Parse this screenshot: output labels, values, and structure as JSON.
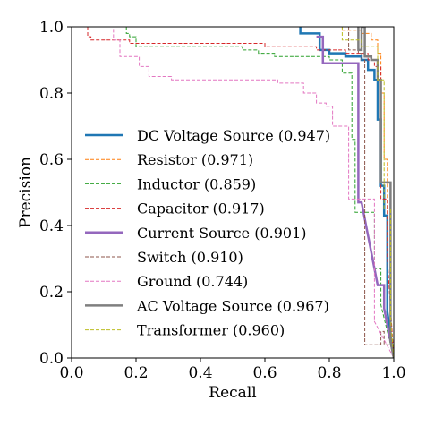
{
  "chart_data": {
    "type": "line",
    "xlabel": "Recall",
    "ylabel": "Precision",
    "xlim": [
      0.0,
      1.0
    ],
    "ylim": [
      0.0,
      1.0
    ],
    "xticks": [
      "0.0",
      "0.2",
      "0.4",
      "0.6",
      "0.8",
      "1.0"
    ],
    "yticks": [
      "0.0",
      "0.2",
      "0.4",
      "0.6",
      "0.8",
      "1.0"
    ],
    "grid": false,
    "legend_position": "center-left",
    "series": [
      {
        "name": "DC Voltage Source (0.947)",
        "color": "#1f77b4",
        "style": "solid",
        "width": 2.5,
        "x": [
          0.71,
          0.71,
          0.77,
          0.77,
          0.8,
          0.8,
          0.85,
          0.85,
          0.9,
          0.9,
          0.92,
          0.92,
          0.94,
          0.94,
          0.95,
          0.95,
          0.96,
          0.96,
          0.97,
          0.97,
          0.98,
          0.98,
          1.0
        ],
        "y": [
          1.0,
          0.98,
          0.98,
          0.93,
          0.93,
          0.92,
          0.92,
          0.91,
          0.91,
          0.9,
          0.9,
          0.87,
          0.87,
          0.84,
          0.84,
          0.72,
          0.72,
          0.52,
          0.52,
          0.43,
          0.43,
          0.14,
          0.0
        ]
      },
      {
        "name": "Resistor (0.971)",
        "color": "#ff7f0e",
        "style": "dashed",
        "width": 1,
        "x": [
          0.0,
          0.84,
          0.84,
          0.9,
          0.9,
          0.93,
          0.93,
          0.95,
          0.95,
          0.96,
          0.96,
          0.97,
          0.97,
          0.98,
          0.98,
          0.99,
          0.99,
          1.0
        ],
        "y": [
          1.0,
          1.0,
          0.99,
          0.99,
          0.98,
          0.98,
          0.96,
          0.96,
          0.92,
          0.92,
          0.8,
          0.8,
          0.6,
          0.6,
          0.34,
          0.34,
          0.08,
          0.0
        ]
      },
      {
        "name": "Inductor (0.859)",
        "color": "#2ca02c",
        "style": "dashed",
        "width": 1,
        "x": [
          0.17,
          0.17,
          0.18,
          0.18,
          0.2,
          0.2,
          0.53,
          0.53,
          0.58,
          0.58,
          0.63,
          0.63,
          0.8,
          0.8,
          0.84,
          0.84,
          0.87,
          0.87,
          0.88,
          0.88,
          0.94,
          0.94,
          0.96,
          0.96,
          1.0
        ],
        "y": [
          1.0,
          0.98,
          0.98,
          0.97,
          0.97,
          0.94,
          0.94,
          0.93,
          0.93,
          0.92,
          0.92,
          0.91,
          0.91,
          0.9,
          0.9,
          0.86,
          0.86,
          0.66,
          0.66,
          0.44,
          0.44,
          0.27,
          0.27,
          0.16,
          0.0
        ]
      },
      {
        "name": "Capacitor (0.917)",
        "color": "#d62728",
        "style": "dashed",
        "width": 1,
        "x": [
          0.05,
          0.05,
          0.06,
          0.06,
          0.18,
          0.18,
          0.6,
          0.6,
          0.76,
          0.76,
          0.85,
          0.85,
          0.92,
          0.92,
          0.94,
          0.94,
          0.96,
          0.96,
          0.98,
          0.98,
          1.0
        ],
        "y": [
          1.0,
          0.97,
          0.97,
          0.96,
          0.96,
          0.95,
          0.95,
          0.94,
          0.94,
          0.93,
          0.93,
          0.92,
          0.92,
          0.9,
          0.9,
          0.88,
          0.88,
          0.48,
          0.48,
          0.3,
          0.0
        ]
      },
      {
        "name": "Current Source (0.901)",
        "color": "#9467bd",
        "style": "solid",
        "width": 2.5,
        "x": [
          0.76,
          0.78,
          0.78,
          0.89,
          0.89,
          0.9,
          0.95,
          0.97,
          0.97,
          1.0
        ],
        "y": [
          0.97,
          0.97,
          0.89,
          0.89,
          0.47,
          0.47,
          0.22,
          0.22,
          0.15,
          0.0
        ]
      },
      {
        "name": "Switch (0.910)",
        "color": "#8c564b",
        "style": "dashed",
        "width": 1,
        "x": [
          0.86,
          0.86,
          0.89,
          0.89,
          0.9,
          0.9,
          0.91,
          0.91,
          0.96,
          0.96,
          0.97,
          0.97,
          0.99,
          1.0
        ],
        "y": [
          1.0,
          0.93,
          0.93,
          0.92,
          0.92,
          0.9,
          0.9,
          0.04,
          0.04,
          0.08,
          0.08,
          0.04,
          0.04,
          0.0
        ]
      },
      {
        "name": "Ground (0.744)",
        "color": "#e377c2",
        "style": "dashed",
        "width": 1,
        "x": [
          0.12,
          0.13,
          0.13,
          0.15,
          0.15,
          0.21,
          0.21,
          0.24,
          0.24,
          0.31,
          0.31,
          0.64,
          0.64,
          0.72,
          0.72,
          0.76,
          0.76,
          0.79,
          0.79,
          0.81,
          0.81,
          0.86,
          0.86,
          0.94,
          0.94,
          1.0
        ],
        "y": [
          1.0,
          1.0,
          0.96,
          0.96,
          0.91,
          0.91,
          0.88,
          0.88,
          0.85,
          0.85,
          0.84,
          0.84,
          0.83,
          0.83,
          0.8,
          0.8,
          0.77,
          0.77,
          0.76,
          0.76,
          0.7,
          0.7,
          0.48,
          0.48,
          0.11,
          0.0
        ]
      },
      {
        "name": "AC Voltage Source (0.967)",
        "color": "#7f7f7f",
        "style": "solid",
        "width": 2.5,
        "x": [
          0.89,
          0.89,
          0.9,
          0.9,
          0.91,
          0.91,
          0.93,
          0.93,
          0.95,
          0.95,
          0.96,
          0.96,
          0.99,
          0.99,
          1.0
        ],
        "y": [
          1.0,
          0.93,
          0.93,
          1.0,
          1.0,
          0.91,
          0.91,
          0.9,
          0.9,
          0.84,
          0.84,
          0.53,
          0.53,
          0.05,
          0.0
        ]
      },
      {
        "name": "Transformer (0.960)",
        "color": "#bcbd22",
        "style": "dashed",
        "width": 1,
        "x": [
          0.84,
          0.84,
          0.9,
          0.9,
          0.95,
          0.95,
          0.97,
          0.97,
          0.99,
          0.99,
          1.0
        ],
        "y": [
          1.0,
          0.96,
          0.96,
          0.94,
          0.94,
          0.84,
          0.84,
          0.45,
          0.45,
          0.12,
          0.0
        ]
      }
    ]
  }
}
